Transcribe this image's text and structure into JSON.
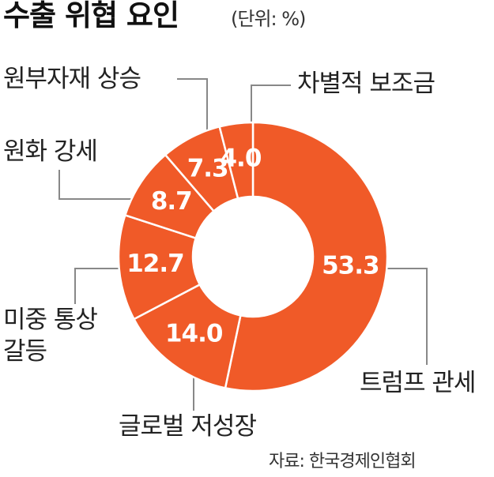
{
  "chart_data": {
    "type": "donut",
    "title": "수출 위협 요인",
    "subtitle": "(단위: %)",
    "categories": [
      "트럼프 관세",
      "글로벌 저성장",
      "미중 통상\n갈등",
      "원화 강세",
      "원부자재 상승",
      "차별적 보조금"
    ],
    "values": [
      53.3,
      14.0,
      12.7,
      8.7,
      7.3,
      4.0
    ],
    "value_labels": [
      "53.3",
      "14.0",
      "12.7",
      "8.7",
      "7.3",
      "4.0"
    ],
    "color": "#f05a28",
    "source": "자료: 한국경제인협회"
  }
}
